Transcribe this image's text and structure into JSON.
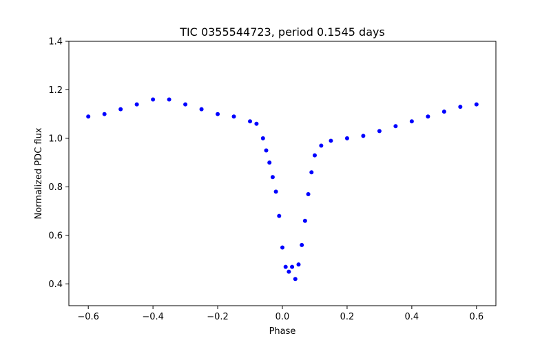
{
  "chart_data": {
    "type": "scatter",
    "title": "TIC 0355544723, period 0.1545 days",
    "xlabel": "Phase",
    "ylabel": "Normalized PDC flux",
    "xlim": [
      -0.66,
      0.66
    ],
    "ylim": [
      0.31,
      1.4
    ],
    "xticks": [
      -0.6,
      -0.4,
      -0.2,
      0.0,
      0.2,
      0.4,
      0.6
    ],
    "xtick_labels": [
      "−0.6",
      "−0.4",
      "−0.2",
      "0.0",
      "0.2",
      "0.4",
      "0.6"
    ],
    "yticks": [
      0.4,
      0.6,
      0.8,
      1.0,
      1.2,
      1.4
    ],
    "ytick_labels": [
      "0.4",
      "0.6",
      "0.8",
      "1.0",
      "1.2",
      "1.4"
    ],
    "grid": false,
    "legend": "none",
    "series": [
      {
        "name": "PDC flux",
        "color": "#0000ff",
        "marker": "circle",
        "x": [
          -0.6,
          -0.55,
          -0.5,
          -0.45,
          -0.4,
          -0.35,
          -0.3,
          -0.25,
          -0.2,
          -0.15,
          -0.1,
          -0.08,
          -0.06,
          -0.05,
          -0.04,
          -0.03,
          -0.02,
          -0.01,
          0.0,
          0.01,
          0.02,
          0.03,
          0.04,
          0.05,
          0.06,
          0.07,
          0.08,
          0.09,
          0.1,
          0.12,
          0.15,
          0.2,
          0.25,
          0.3,
          0.35,
          0.4,
          0.45,
          0.5,
          0.55,
          0.6
        ],
        "y": [
          1.09,
          1.1,
          1.12,
          1.14,
          1.16,
          1.16,
          1.14,
          1.12,
          1.1,
          1.09,
          1.07,
          1.06,
          1.0,
          0.95,
          0.9,
          0.84,
          0.78,
          0.68,
          0.55,
          0.47,
          0.45,
          0.47,
          0.42,
          0.48,
          0.56,
          0.66,
          0.77,
          0.86,
          0.93,
          0.97,
          0.99,
          1.0,
          1.01,
          1.03,
          1.05,
          1.07,
          1.09,
          1.11,
          1.13,
          1.14
        ]
      }
    ]
  }
}
